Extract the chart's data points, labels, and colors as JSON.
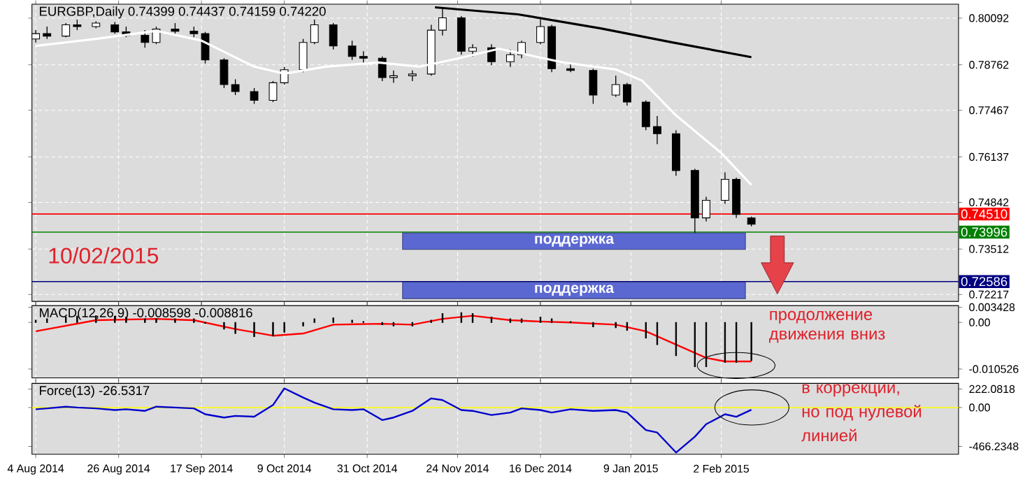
{
  "chart_data": [
    {
      "type": "candlestick",
      "title": "EURGBP,Daily 0.74399 0.74437 0.74159 0.74220",
      "x": [
        "2014-08-04",
        "2014-08-07",
        "2014-08-12",
        "2014-08-15",
        "2014-08-20",
        "2014-08-25",
        "2014-08-28",
        "2014-09-02",
        "2014-09-05",
        "2014-09-10",
        "2014-09-15",
        "2014-09-18",
        "2014-09-23",
        "2014-09-26",
        "2014-10-01",
        "2014-10-06",
        "2014-10-09",
        "2014-10-14",
        "2014-10-17",
        "2014-10-22",
        "2014-10-27",
        "2014-10-30",
        "2014-11-04",
        "2014-11-07",
        "2014-11-12",
        "2014-11-17",
        "2014-11-20",
        "2014-11-25",
        "2014-11-28",
        "2014-12-03",
        "2014-12-08",
        "2014-12-11",
        "2014-12-16",
        "2014-12-19",
        "2014-12-24",
        "2014-12-30",
        "2015-01-05",
        "2015-01-08",
        "2015-01-13",
        "2015-01-16",
        "2015-01-21",
        "2015-01-26",
        "2015-01-29",
        "2015-02-03",
        "2015-02-06",
        "2015-02-10"
      ],
      "ohlc": [
        [
          0.795,
          0.7975,
          0.794,
          0.7965
        ],
        [
          0.7965,
          0.7985,
          0.795,
          0.7958
        ],
        [
          0.7958,
          0.7995,
          0.7955,
          0.799
        ],
        [
          0.799,
          0.8005,
          0.7975,
          0.7985
        ],
        [
          0.7985,
          0.8,
          0.798,
          0.7995
        ],
        [
          0.799,
          0.7998,
          0.7965,
          0.797
        ],
        [
          0.797,
          0.7985,
          0.7955,
          0.796
        ],
        [
          0.796,
          0.7975,
          0.7925,
          0.794
        ],
        [
          0.794,
          0.7985,
          0.7935,
          0.7978
        ],
        [
          0.7978,
          0.7995,
          0.7965,
          0.7972
        ],
        [
          0.7972,
          0.7985,
          0.7955,
          0.7965
        ],
        [
          0.7965,
          0.797,
          0.788,
          0.789
        ],
        [
          0.789,
          0.7895,
          0.781,
          0.782
        ],
        [
          0.782,
          0.7835,
          0.779,
          0.78
        ],
        [
          0.78,
          0.781,
          0.7765,
          0.7775
        ],
        [
          0.7775,
          0.783,
          0.777,
          0.7825
        ],
        [
          0.7825,
          0.787,
          0.782,
          0.7862
        ],
        [
          0.7862,
          0.795,
          0.7855,
          0.794
        ],
        [
          0.794,
          0.8005,
          0.7935,
          0.799
        ],
        [
          0.799,
          0.7995,
          0.792,
          0.793
        ],
        [
          0.793,
          0.7945,
          0.789,
          0.79
        ],
        [
          0.79,
          0.7915,
          0.788,
          0.7895
        ],
        [
          0.7895,
          0.79,
          0.783,
          0.784
        ],
        [
          0.784,
          0.786,
          0.7825,
          0.7845
        ],
        [
          0.7845,
          0.786,
          0.783,
          0.785
        ],
        [
          0.785,
          0.799,
          0.7845,
          0.7975
        ],
        [
          0.7975,
          0.8037,
          0.796,
          0.801
        ],
        [
          0.801,
          0.8015,
          0.7905,
          0.7915
        ],
        [
          0.7915,
          0.7935,
          0.79,
          0.7925
        ],
        [
          0.7925,
          0.7935,
          0.7875,
          0.7885
        ],
        [
          0.7885,
          0.792,
          0.787,
          0.7905
        ],
        [
          0.7905,
          0.7945,
          0.7895,
          0.794
        ],
        [
          0.794,
          0.8005,
          0.7935,
          0.7985
        ],
        [
          0.7985,
          0.799,
          0.7855,
          0.7865
        ],
        [
          0.7865,
          0.788,
          0.7855,
          0.786
        ],
        [
          0.786,
          0.7865,
          0.7765,
          0.779
        ],
        [
          0.779,
          0.7845,
          0.7785,
          0.782
        ],
        [
          0.782,
          0.7825,
          0.776,
          0.777
        ],
        [
          0.777,
          0.7775,
          0.769,
          0.77
        ],
        [
          0.77,
          0.773,
          0.765,
          0.768
        ],
        [
          0.768,
          0.769,
          0.756,
          0.7575
        ],
        [
          0.7575,
          0.758,
          0.7395,
          0.744
        ],
        [
          0.744,
          0.75,
          0.743,
          0.749
        ],
        [
          0.749,
          0.757,
          0.748,
          0.755
        ],
        [
          0.755,
          0.7555,
          0.744,
          0.745
        ],
        [
          0.74399,
          0.74437,
          0.74159,
          0.7422
        ]
      ],
      "series": [
        {
          "type": "line",
          "color": "#000000",
          "x": [
            "2014-11-18",
            "2014-12-10",
            "2015-01-01",
            "2015-01-20",
            "2015-02-10"
          ],
          "values": [
            0.804,
            0.802,
            0.798,
            0.794,
            0.7898
          ]
        },
        {
          "type": "line",
          "color": "#ffffff",
          "x": [
            "2014-08-04",
            "2014-08-20",
            "2014-09-05",
            "2014-09-17",
            "2014-10-01",
            "2014-10-09",
            "2014-10-20",
            "2014-11-03",
            "2014-11-14",
            "2014-11-24",
            "2014-12-05",
            "2014-12-22",
            "2015-01-05",
            "2015-01-12",
            "2015-01-21",
            "2015-02-02",
            "2015-02-10"
          ],
          "values": [
            0.793,
            0.795,
            0.7973,
            0.7945,
            0.7871,
            0.7851,
            0.7871,
            0.7883,
            0.7871,
            0.7894,
            0.7922,
            0.7883,
            0.7863,
            0.7831,
            0.7732,
            0.7625,
            0.7534
          ]
        }
      ],
      "xlim": [
        "2014-08-03",
        "2015-04-06"
      ],
      "xticks": [
        {
          "value": "2014-08-04",
          "label": null
        },
        {
          "value": "2014-08-26",
          "label": null
        },
        {
          "value": "2014-09-17",
          "label": null
        },
        {
          "value": "2014-10-09",
          "label": null
        },
        {
          "value": "2014-10-31",
          "label": null
        },
        {
          "value": "2014-11-24",
          "label": null
        },
        {
          "value": "2014-12-16",
          "label": null
        },
        {
          "value": "2015-01-09",
          "label": null
        },
        {
          "value": "2015-02-02",
          "label": null
        }
      ],
      "ylim": [
        0.7202,
        0.8049
      ],
      "yticks": [
        0.80092,
        0.78762,
        0.77467,
        0.76137,
        0.74842,
        0.73512,
        0.72217
      ],
      "ref_lines": [
        {
          "axis": "y",
          "value": 0.7451,
          "label": "0.74510",
          "color": "#ff0000"
        },
        {
          "axis": "y",
          "value": 0.73996,
          "label": "0.73996",
          "color": "#008000"
        },
        {
          "axis": "y",
          "value": 0.72586,
          "label": "0.72586",
          "color": "#000080"
        }
      ],
      "annotations": [
        "10/02/2015"
      ],
      "bands": [
        {
          "axis": "y",
          "from": 0.735,
          "to": 0.7397,
          "label": "поддержка",
          "color": "#5b68d2"
        },
        {
          "axis": "y",
          "from": 0.721,
          "to": 0.7257,
          "label": "поддержка",
          "color": "#5b68d2"
        }
      ],
      "grid": true,
      "tick_labels": "y"
    },
    {
      "type": "bar",
      "title": "MACD(12,26,9) -0.008598 -0.008816",
      "x": [
        "2014-08-04",
        "2014-08-07",
        "2014-08-12",
        "2014-08-15",
        "2014-08-20",
        "2014-08-25",
        "2014-08-28",
        "2014-09-02",
        "2014-09-05",
        "2014-09-10",
        "2014-09-15",
        "2014-09-18",
        "2014-09-23",
        "2014-09-26",
        "2014-10-01",
        "2014-10-06",
        "2014-10-09",
        "2014-10-14",
        "2014-10-17",
        "2014-10-22",
        "2014-10-27",
        "2014-10-30",
        "2014-11-04",
        "2014-11-07",
        "2014-11-12",
        "2014-11-17",
        "2014-11-20",
        "2014-11-25",
        "2014-11-28",
        "2014-12-03",
        "2014-12-08",
        "2014-12-11",
        "2014-12-16",
        "2014-12-19",
        "2014-12-24",
        "2014-12-30",
        "2015-01-05",
        "2015-01-08",
        "2015-01-13",
        "2015-01-16",
        "2015-01-21",
        "2015-01-26",
        "2015-01-29",
        "2015-02-03",
        "2015-02-06",
        "2015-02-10"
      ],
      "series": [
        {
          "type": "bar",
          "color": "#000000",
          "values": [
            0.0005,
            0.0008,
            0.0012,
            0.0014,
            0.0015,
            0.0014,
            0.0012,
            0.0008,
            0.0008,
            0.0008,
            0.0008,
            -0.0002,
            -0.0015,
            -0.0025,
            -0.0032,
            -0.003,
            -0.0022,
            -0.0008,
            0.0008,
            0.001,
            0.0005,
            0.0002,
            -0.0005,
            -0.0008,
            -0.0008,
            0.0005,
            0.002,
            0.0022,
            0.002,
            0.0012,
            0.0008,
            0.0008,
            0.0012,
            0.0008,
            0.0002,
            -0.001,
            -0.0012,
            -0.0018,
            -0.0035,
            -0.005,
            -0.0075,
            -0.01,
            -0.01,
            -0.009,
            -0.009,
            -0.008598
          ]
        },
        {
          "type": "line",
          "color": "#ff0000",
          "x": [
            "2014-08-04",
            "2014-08-20",
            "2014-09-05",
            "2014-09-15",
            "2014-09-26",
            "2014-10-06",
            "2014-10-14",
            "2014-10-22",
            "2014-11-04",
            "2014-11-12",
            "2014-11-20",
            "2014-11-28",
            "2014-12-08",
            "2014-12-16",
            "2014-12-24",
            "2015-01-05",
            "2015-01-13",
            "2015-01-21",
            "2015-01-29",
            "2015-02-03",
            "2015-02-10"
          ],
          "values": [
            -0.002,
            0.0005,
            0.0008,
            0.0005,
            -0.0015,
            -0.003,
            -0.0025,
            -0.0005,
            -0.0003,
            -0.0005,
            0.0008,
            0.0015,
            0.0005,
            0.0002,
            0.0,
            -0.0005,
            -0.002,
            -0.005,
            -0.008,
            -0.0088,
            -0.008816
          ]
        }
      ],
      "xlim": [
        "2014-08-03",
        "2015-04-06"
      ],
      "xticks": [
        {
          "value": "2014-08-04",
          "label": null
        },
        {
          "value": "2014-08-26",
          "label": null
        },
        {
          "value": "2014-09-17",
          "label": null
        },
        {
          "value": "2014-10-09",
          "label": null
        },
        {
          "value": "2014-10-31",
          "label": null
        },
        {
          "value": "2014-11-24",
          "label": null
        },
        {
          "value": "2014-12-16",
          "label": null
        },
        {
          "value": "2015-01-09",
          "label": null
        },
        {
          "value": "2015-02-02",
          "label": null
        }
      ],
      "ylim": [
        -0.0125,
        0.0038
      ],
      "yticks": [
        0.003428,
        {
          "value": 0,
          "label": "0.00"
        },
        -0.010526
      ],
      "annotations": [
        "продолжение движения вниз"
      ],
      "grid": "x",
      "tick_labels": "y"
    },
    {
      "type": "line",
      "title": "Force(13) -26.5317",
      "x": [
        "2014-08-04",
        "2014-08-07",
        "2014-08-12",
        "2014-08-15",
        "2014-08-20",
        "2014-08-25",
        "2014-08-28",
        "2014-09-02",
        "2014-09-05",
        "2014-09-10",
        "2014-09-15",
        "2014-09-18",
        "2014-09-23",
        "2014-09-26",
        "2014-10-01",
        "2014-10-06",
        "2014-10-09",
        "2014-10-14",
        "2014-10-17",
        "2014-10-22",
        "2014-10-27",
        "2014-10-30",
        "2014-11-04",
        "2014-11-07",
        "2014-11-12",
        "2014-11-17",
        "2014-11-20",
        "2014-11-25",
        "2014-11-28",
        "2014-12-03",
        "2014-12-08",
        "2014-12-11",
        "2014-12-16",
        "2014-12-19",
        "2014-12-24",
        "2014-12-30",
        "2015-01-05",
        "2015-01-08",
        "2015-01-13",
        "2015-01-16",
        "2015-01-21",
        "2015-01-26",
        "2015-01-29",
        "2015-02-03",
        "2015-02-06",
        "2015-02-10"
      ],
      "series": [
        {
          "color": "#0000cc",
          "values": [
            -20,
            -10,
            10,
            0,
            -10,
            -30,
            -20,
            -40,
            10,
            0,
            -10,
            -80,
            -120,
            -100,
            -110,
            30,
            230,
            120,
            60,
            -20,
            -30,
            -20,
            -150,
            -120,
            -40,
            110,
            90,
            -30,
            -40,
            -90,
            -60,
            -10,
            -30,
            -60,
            -20,
            -40,
            -30,
            -60,
            -270,
            -300,
            -540,
            -350,
            -200,
            -80,
            -110,
            -26.5317
          ]
        }
      ],
      "xlim": [
        "2014-08-03",
        "2015-04-06"
      ],
      "xticks": [
        {
          "value": "2014-08-04",
          "label": "4 Aug 2014"
        },
        {
          "value": "2014-08-26",
          "label": "26 Aug 2014"
        },
        {
          "value": "2014-09-17",
          "label": "17 Sep 2014"
        },
        {
          "value": "2014-10-09",
          "label": "9 Oct 2014"
        },
        {
          "value": "2014-10-31",
          "label": "31 Oct 2014"
        },
        {
          "value": "2014-11-24",
          "label": "24 Nov 2014"
        },
        {
          "value": "2014-12-16",
          "label": "16 Dec 2014"
        },
        {
          "value": "2015-01-09",
          "label": "9 Jan 2015"
        },
        {
          "value": "2015-02-02",
          "label": "2 Feb 2015"
        }
      ],
      "ylim": [
        -560,
        290
      ],
      "yticks": [
        222.0818,
        {
          "value": 0,
          "label": "0.00"
        },
        -466.2348
      ],
      "ref_lines": [
        {
          "axis": "y",
          "value": 0,
          "color": "#ffff00"
        }
      ],
      "annotations": [
        "в коррекции, но под нулевой линией"
      ],
      "grid": "x"
    }
  ]
}
